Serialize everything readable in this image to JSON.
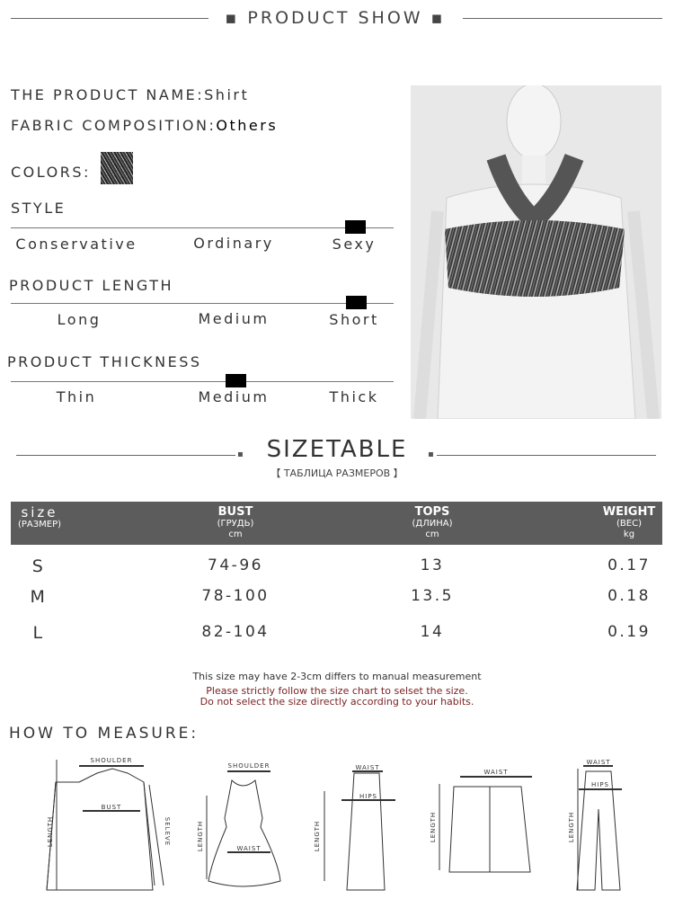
{
  "header": {
    "title": "PRODUCT SHOW"
  },
  "product": {
    "name_label": "THE PRODUCT NAME:",
    "name": "Shirt",
    "fabric_label": "FABRIC COMPOSITION:",
    "fabric": "Others",
    "colors_label": "COLORS:",
    "color_swatch": "#4a4a4a"
  },
  "attributes": [
    {
      "title": "STYLE",
      "options": [
        "Conservative",
        "Ordinary",
        "Sexy"
      ],
      "selected": "Sexy"
    },
    {
      "title": "PRODUCT LENGTH",
      "options": [
        "Long",
        "Medium",
        "Short"
      ],
      "selected": "Short"
    },
    {
      "title": "PRODUCT THICKNESS",
      "options": [
        "Thin",
        "Medium",
        "Thick"
      ],
      "selected": "Medium"
    }
  ],
  "sizetable": {
    "title": "SIZETABLE",
    "subtitle": "【 ТАБЛИЦА РАЗМЕРОВ 】",
    "headers": [
      {
        "main": "size",
        "ru": "(РАЗМЕР)",
        "unit": ""
      },
      {
        "main": "BUST",
        "ru": "(ГРУДЬ)",
        "unit": "cm"
      },
      {
        "main": "TOPS",
        "ru": "(ДЛИНА)",
        "unit": "cm"
      },
      {
        "main": "WEIGHT",
        "ru": "(ВЕС)",
        "unit": "kg"
      }
    ],
    "rows": [
      [
        "S",
        "74-96",
        "13",
        "0.17"
      ],
      [
        "M",
        "78-100",
        "13.5",
        "0.18"
      ],
      [
        "L",
        "82-104",
        "14",
        "0.19"
      ]
    ],
    "notes": [
      "This size may have 2-3cm differs to manual measurement",
      "Please strictly follow the size chart to selset the size.",
      "Do not select the size directly according to your habits."
    ],
    "header_bg": "#5c5c5c",
    "warning_color": "#7a1f1f"
  },
  "measure": {
    "title": "HOW TO MEASURE:",
    "labels": {
      "shoulder": "SHOULDER",
      "bust": "BUST",
      "length": "LENGTH",
      "sleeve": "SELEVE",
      "waist": "WAIST",
      "hips": "HIPS"
    }
  }
}
